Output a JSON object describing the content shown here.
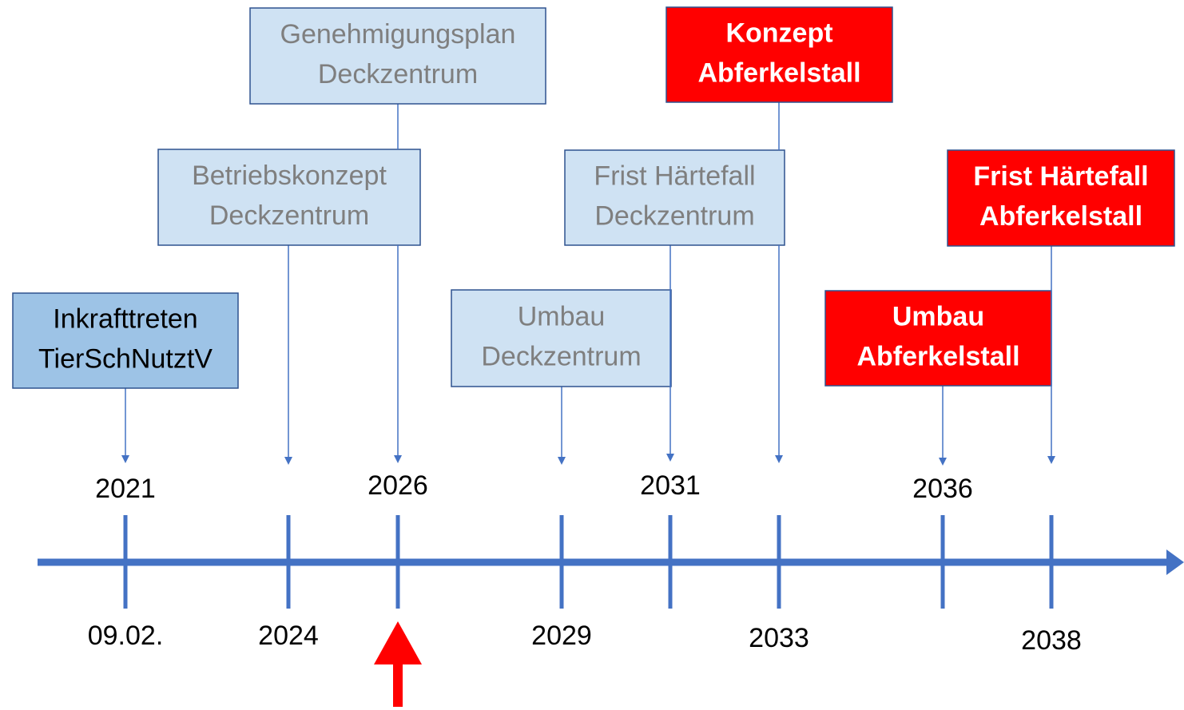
{
  "events": [
    {
      "lines": [
        "Inkrafttreten",
        "TierSchNutztV"
      ]
    },
    {
      "lines": [
        "Betriebskonzept",
        "Deckzentrum"
      ]
    },
    {
      "lines": [
        "Genehmigungsplan",
        "Deckzentrum"
      ]
    },
    {
      "lines": [
        "Umbau",
        "Deckzentrum"
      ]
    },
    {
      "lines": [
        "Frist Härtefall",
        "Deckzentrum"
      ]
    },
    {
      "lines": [
        "Konzept",
        "Abferkelstall"
      ]
    },
    {
      "lines": [
        "Umbau",
        "Abferkelstall"
      ]
    },
    {
      "lines": [
        "Frist Härtefall",
        "Abferkelstall"
      ]
    }
  ],
  "labels_above": [
    "2021",
    "2026",
    "2031",
    "2036"
  ],
  "labels_below": [
    "09.02.",
    "2024",
    "2029",
    "2033",
    "2038"
  ]
}
